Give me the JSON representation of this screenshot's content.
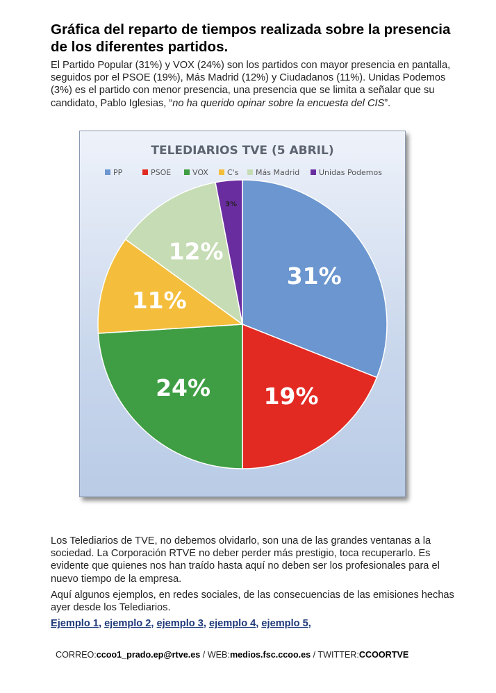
{
  "article": {
    "title": "Gráfica del reparto de tiempos realizada sobre la presencia de los diferentes partidos.",
    "intro_part1": "El Partido Popular (31%) y VOX (24%) son los partidos con mayor presencia en pantalla, seguidos por el PSOE (19%), Más Madrid (12%) y Ciudadanos (11%). Unidas Podemos (3%) es el partido con menor presencia, una presencia que se limita a señalar que su candidato, Pablo Iglesias, “",
    "intro_quote": "no ha querido opinar sobre la encuesta del CIS",
    "intro_part2": "”.",
    "paragraph2": "Los Telediarios de TVE, no debemos olvidarlo, son una de las grandes ventanas a la sociedad. La Corporación RTVE no deber perder más prestigio, toca recuperarlo. Es evidente que quienes nos han traído hasta aquí no deben ser los profesionales para el nuevo tiempo de la empresa.",
    "paragraph3": "Aquí algunos ejemplos, en redes sociales, de las consecuencias de las emisiones hechas ayer desde los Telediarios.",
    "links": [
      "Ejemplo 1",
      "ejemplo 2",
      "ejemplo 3",
      "ejemplo 4",
      "ejemplo 5"
    ],
    "link_separator": ",",
    "footer": {
      "correo_label": "CORREO:",
      "correo_value": "ccoo1_prado.ep@rtve.es",
      "web_label": " / WEB:",
      "web_value": "medios.fsc.ccoo.es",
      "twitter_label": " / TWITTER:",
      "twitter_value": "CCOORTVE"
    }
  },
  "chart_data": {
    "type": "pie",
    "title": "TELEDIARIOS TVE (5 ABRIL)",
    "legend_position": "top",
    "categories": [
      "PP",
      "PSOE",
      "VOX",
      "C's",
      "Más Madrid",
      "Unidas Podemos"
    ],
    "values": [
      31,
      19,
      24,
      11,
      12,
      3
    ],
    "labels": [
      "31%",
      "19%",
      "24%",
      "11%",
      "12%",
      "3%"
    ],
    "colors": [
      "#6b96cf",
      "#e22a23",
      "#3f9e44",
      "#f4be3c",
      "#c6dcb4",
      "#6a2da0"
    ],
    "start": "12 o'clock",
    "direction": "clockwise"
  }
}
